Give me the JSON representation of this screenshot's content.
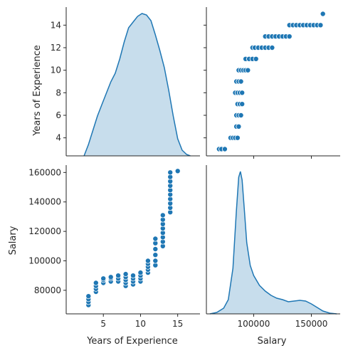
{
  "chart_data": {
    "type": "pairplot",
    "variables": [
      "Years of Experience",
      "Salary"
    ],
    "color": "#1f77b4",
    "grid": false,
    "legend": false,
    "panels": [
      {
        "id": "kde_years",
        "type": "area",
        "row": 0,
        "col": 0,
        "xlim": [
          0,
          18
        ],
        "x": [
          2.4,
          3,
          3.6,
          4.2,
          4.8,
          5.4,
          6,
          6.6,
          7.2,
          7.8,
          8.4,
          9,
          9.6,
          10.2,
          10.8,
          11.4,
          12,
          12.6,
          13.2,
          13.8,
          14.4,
          15,
          15.6,
          16.2,
          16.7
        ],
        "density": [
          0.0,
          0.08,
          0.18,
          0.28,
          0.36,
          0.44,
          0.52,
          0.58,
          0.68,
          0.8,
          0.9,
          0.94,
          0.98,
          1.0,
          0.99,
          0.95,
          0.85,
          0.74,
          0.62,
          0.46,
          0.28,
          0.12,
          0.04,
          0.01,
          0.0
        ],
        "ylabel": "Years of Experience",
        "yticks": [
          4,
          6,
          8,
          10,
          12,
          14
        ],
        "ylim": [
          2.4,
          15.6
        ]
      },
      {
        "id": "scatter_salary_years",
        "type": "scatter",
        "row": 0,
        "col": 1,
        "xlim": [
          59000,
          175000
        ],
        "ylim": [
          2.4,
          15.6
        ],
        "xticks": [
          100000,
          150000
        ],
        "yticks": [
          4,
          6,
          8,
          10,
          12,
          14
        ],
        "points": [
          [
            70000,
            3
          ],
          [
            72000,
            3
          ],
          [
            75000,
            3
          ],
          [
            80000,
            4
          ],
          [
            82000,
            4
          ],
          [
            84000,
            4
          ],
          [
            86000,
            4
          ],
          [
            85000,
            5
          ],
          [
            87000,
            5
          ],
          [
            85000,
            6
          ],
          [
            87000,
            6
          ],
          [
            89000,
            6
          ],
          [
            86000,
            7
          ],
          [
            88000,
            7
          ],
          [
            90000,
            7
          ],
          [
            84000,
            8
          ],
          [
            86000,
            8
          ],
          [
            88000,
            8
          ],
          [
            90000,
            8
          ],
          [
            85000,
            9
          ],
          [
            87000,
            9
          ],
          [
            89000,
            9
          ],
          [
            87000,
            10
          ],
          [
            89000,
            10
          ],
          [
            91000,
            10
          ],
          [
            93000,
            10
          ],
          [
            95000,
            10
          ],
          [
            93000,
            11
          ],
          [
            96000,
            11
          ],
          [
            99000,
            11
          ],
          [
            102000,
            11
          ],
          [
            99000,
            12
          ],
          [
            101000,
            12
          ],
          [
            104000,
            12
          ],
          [
            107000,
            12
          ],
          [
            110000,
            12
          ],
          [
            113000,
            12
          ],
          [
            116000,
            12
          ],
          [
            110000,
            13
          ],
          [
            113000,
            13
          ],
          [
            116000,
            13
          ],
          [
            119000,
            13
          ],
          [
            122000,
            13
          ],
          [
            125000,
            13
          ],
          [
            128000,
            13
          ],
          [
            131000,
            13
          ],
          [
            131000,
            14
          ],
          [
            134000,
            14
          ],
          [
            137000,
            14
          ],
          [
            140000,
            14
          ],
          [
            143000,
            14
          ],
          [
            146000,
            14
          ],
          [
            149000,
            14
          ],
          [
            152000,
            14
          ],
          [
            155000,
            14
          ],
          [
            158000,
            14
          ],
          [
            160000,
            15
          ]
        ]
      },
      {
        "id": "scatter_years_salary",
        "type": "scatter",
        "row": 1,
        "col": 0,
        "xlim": [
          0,
          18
        ],
        "ylim": [
          64000,
          165000
        ],
        "xticks": [
          5,
          10,
          15
        ],
        "yticks": [
          80000,
          100000,
          120000,
          140000,
          160000
        ],
        "xlabel": "Years of Experience",
        "ylabel": "Salary",
        "points": [
          [
            3,
            70000
          ],
          [
            3,
            72000
          ],
          [
            3,
            74000
          ],
          [
            3,
            76000
          ],
          [
            4,
            79000
          ],
          [
            4,
            81000
          ],
          [
            4,
            83000
          ],
          [
            4,
            85000
          ],
          [
            5,
            85000
          ],
          [
            5,
            87000
          ],
          [
            5,
            88000
          ],
          [
            6,
            86000
          ],
          [
            6,
            88000
          ],
          [
            6,
            89000
          ],
          [
            7,
            86000
          ],
          [
            7,
            88000
          ],
          [
            7,
            90000
          ],
          [
            8,
            83000
          ],
          [
            8,
            85000
          ],
          [
            8,
            87000
          ],
          [
            8,
            89000
          ],
          [
            8,
            91000
          ],
          [
            9,
            84000
          ],
          [
            9,
            86000
          ],
          [
            9,
            88000
          ],
          [
            9,
            90000
          ],
          [
            10,
            86000
          ],
          [
            10,
            88000
          ],
          [
            10,
            90000
          ],
          [
            10,
            92000
          ],
          [
            11,
            92000
          ],
          [
            11,
            94000
          ],
          [
            11,
            96000
          ],
          [
            11,
            98000
          ],
          [
            11,
            100000
          ],
          [
            12,
            97000
          ],
          [
            12,
            100000
          ],
          [
            12,
            104000
          ],
          [
            12,
            108000
          ],
          [
            12,
            112000
          ],
          [
            12,
            115000
          ],
          [
            13,
            110000
          ],
          [
            13,
            113000
          ],
          [
            13,
            116000
          ],
          [
            13,
            119000
          ],
          [
            13,
            122000
          ],
          [
            13,
            125000
          ],
          [
            13,
            128000
          ],
          [
            13,
            131000
          ],
          [
            14,
            133000
          ],
          [
            14,
            136000
          ],
          [
            14,
            139000
          ],
          [
            14,
            142000
          ],
          [
            14,
            145000
          ],
          [
            14,
            148000
          ],
          [
            14,
            151000
          ],
          [
            14,
            154000
          ],
          [
            14,
            157000
          ],
          [
            14,
            160000
          ],
          [
            15,
            161000
          ]
        ]
      },
      {
        "id": "kde_salary",
        "type": "area",
        "row": 1,
        "col": 1,
        "xlim": [
          59000,
          175000
        ],
        "xticks": [
          100000,
          150000
        ],
        "xlabel": "Salary",
        "x": [
          62000,
          68000,
          74000,
          78000,
          82000,
          85000,
          87000,
          88500,
          90000,
          92000,
          94000,
          97000,
          100000,
          105000,
          110000,
          115000,
          120000,
          125000,
          130000,
          135000,
          140000,
          145000,
          150000,
          155000,
          160000,
          166000,
          172000
        ],
        "density": [
          0.0,
          0.01,
          0.04,
          0.1,
          0.32,
          0.72,
          0.96,
          1.0,
          0.94,
          0.72,
          0.5,
          0.34,
          0.27,
          0.2,
          0.16,
          0.13,
          0.11,
          0.1,
          0.085,
          0.09,
          0.095,
          0.09,
          0.07,
          0.045,
          0.02,
          0.005,
          0.0
        ]
      }
    ]
  }
}
